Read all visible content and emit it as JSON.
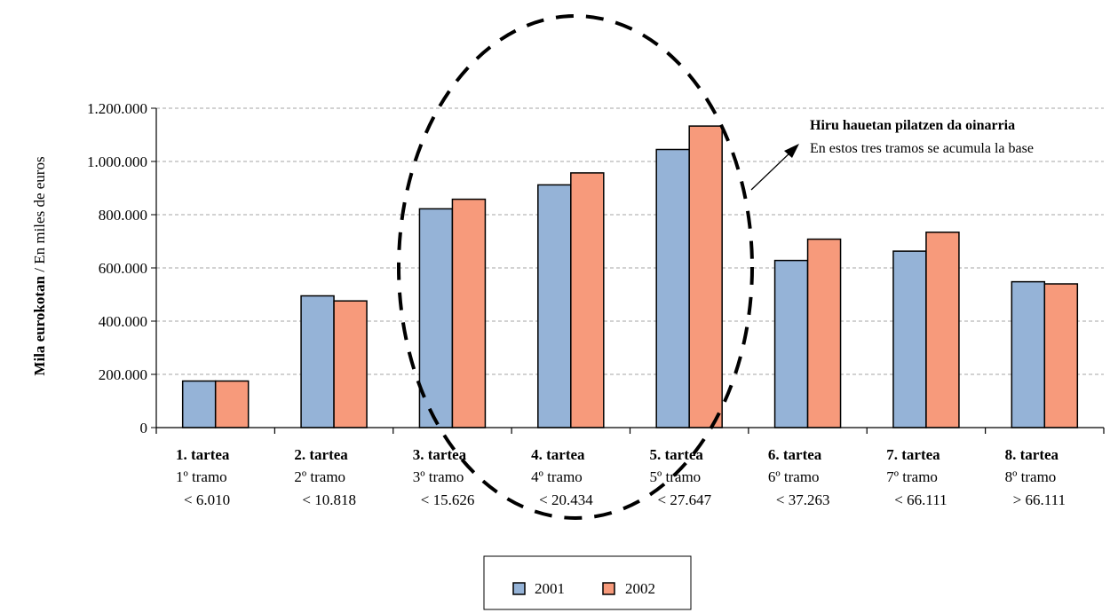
{
  "y_axis_label": {
    "bold": "Mila eurokotan",
    "rest": " / En miles de euros"
  },
  "annotation": {
    "line1": "Hiru hauetan pilatzen da oinarria",
    "line2": "En estos tres tramos se acumula la base"
  },
  "legend": [
    {
      "label": "2001"
    },
    {
      "label": "2002"
    }
  ],
  "chart_data": {
    "type": "bar",
    "categories": [
      {
        "name": "1. tartea",
        "line2": "1º tramo",
        "line3": "< 6.010"
      },
      {
        "name": "2. tartea",
        "line2": "2º tramo",
        "line3": "< 10.818"
      },
      {
        "name": "3. tartea",
        "line2": "3º tramo",
        "line3": "< 15.626"
      },
      {
        "name": "4. tartea",
        "line2": "4º tramo",
        "line3": "< 20.434"
      },
      {
        "name": "5. tartea",
        "line2": "5º tramo",
        "line3": "< 27.647"
      },
      {
        "name": "6. tartea",
        "line2": "6º tramo",
        "line3": "< 37.263"
      },
      {
        "name": "7. tartea",
        "line2": "7º tramo",
        "line3": "< 66.111"
      },
      {
        "name": "8. tartea",
        "line2": "8º tramo",
        "line3": "> 66.111"
      }
    ],
    "series": [
      {
        "name": "2001",
        "color": "#95B3D7",
        "values": [
          175000,
          495000,
          822000,
          912000,
          1045000,
          628000,
          663000,
          548000
        ]
      },
      {
        "name": "2002",
        "color": "#F79A7B",
        "values": [
          175000,
          476000,
          858000,
          957000,
          1133000,
          708000,
          734000,
          540000
        ]
      }
    ],
    "ylim": [
      0,
      1200000
    ],
    "yticks": [
      {
        "v": 0,
        "label": "0"
      },
      {
        "v": 200000,
        "label": "200.000"
      },
      {
        "v": 400000,
        "label": "400.000"
      },
      {
        "v": 600000,
        "label": "600.000"
      },
      {
        "v": 800000,
        "label": "800.000"
      },
      {
        "v": 1000000,
        "label": "1.000.000"
      },
      {
        "v": 1200000,
        "label": "1.200.000"
      }
    ],
    "grid": true,
    "legend_position": "bottom",
    "highlighted_categories": [
      2,
      3,
      4
    ]
  }
}
